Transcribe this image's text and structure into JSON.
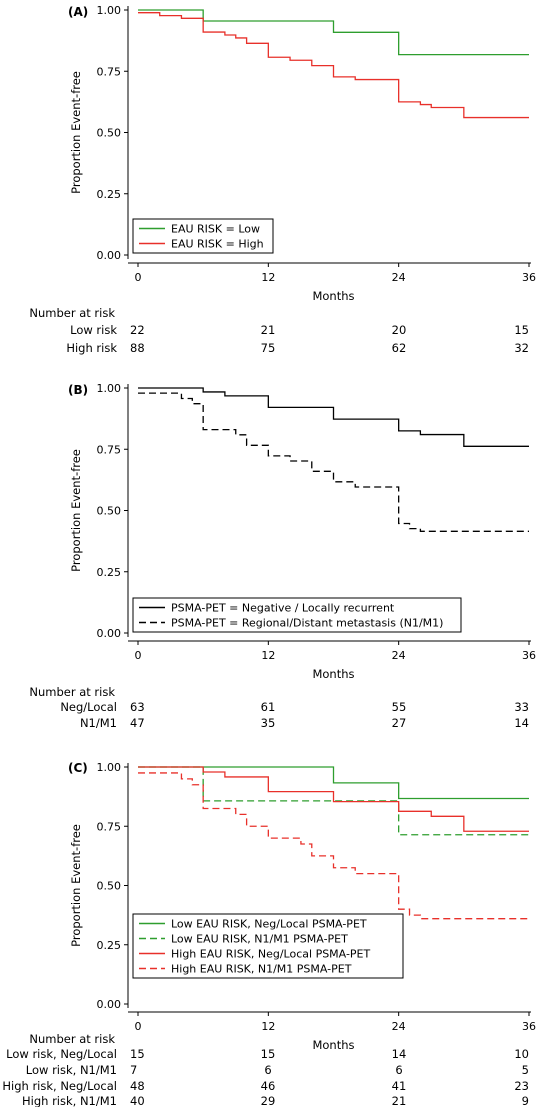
{
  "figure": {
    "x_axis_label": "Months",
    "y_axis_label": "Proportion Event-free",
    "number_at_risk_title": "Number at risk"
  },
  "chart_data": [
    {
      "panel_label": "(A)",
      "type": "line",
      "xlabel": "Months",
      "ylabel": "Proportion Event-free",
      "x_ticks": [
        0,
        12,
        24,
        36
      ],
      "y_ticks": [
        "0.00",
        "0.25",
        "0.50",
        "0.75",
        "1.00"
      ],
      "xlim": [
        0,
        36
      ],
      "ylim": [
        0,
        1
      ],
      "legend_position": "bottom-left",
      "series": [
        {
          "name": "EAU RISK = Low",
          "color": "#2e9e2e",
          "dash": "solid",
          "steps": [
            [
              0,
              1.0
            ],
            [
              6,
              0.955
            ],
            [
              18,
              0.909
            ],
            [
              24,
              0.818
            ],
            [
              36,
              0.818
            ]
          ]
        },
        {
          "name": "EAU RISK = High",
          "color": "#e8302a",
          "dash": "solid",
          "steps": [
            [
              0,
              0.989
            ],
            [
              2,
              0.977
            ],
            [
              4,
              0.966
            ],
            [
              6,
              0.91
            ],
            [
              8,
              0.898
            ],
            [
              9,
              0.886
            ],
            [
              10,
              0.864
            ],
            [
              12,
              0.807
            ],
            [
              14,
              0.795
            ],
            [
              16,
              0.773
            ],
            [
              18,
              0.727
            ],
            [
              20,
              0.716
            ],
            [
              24,
              0.625
            ],
            [
              26,
              0.614
            ],
            [
              27,
              0.602
            ],
            [
              30,
              0.561
            ],
            [
              36,
              0.561
            ]
          ]
        }
      ],
      "risk_table": [
        {
          "label": "Low risk",
          "values": [
            22,
            21,
            20,
            15
          ]
        },
        {
          "label": "High risk",
          "values": [
            88,
            75,
            62,
            32
          ]
        }
      ]
    },
    {
      "panel_label": "(B)",
      "type": "line",
      "xlabel": "Months",
      "ylabel": "Proportion Event-free",
      "x_ticks": [
        0,
        12,
        24,
        36
      ],
      "y_ticks": [
        "0.00",
        "0.25",
        "0.50",
        "0.75",
        "1.00"
      ],
      "xlim": [
        0,
        36
      ],
      "ylim": [
        0,
        1
      ],
      "legend_position": "bottom-left",
      "series": [
        {
          "name": "PSMA-PET = Negative / Locally recurrent",
          "color": "#000000",
          "dash": "solid",
          "steps": [
            [
              0,
              1.0
            ],
            [
              6,
              0.984
            ],
            [
              8,
              0.968
            ],
            [
              12,
              0.921
            ],
            [
              18,
              0.873
            ],
            [
              24,
              0.825
            ],
            [
              26,
              0.81
            ],
            [
              30,
              0.762
            ],
            [
              36,
              0.762
            ]
          ]
        },
        {
          "name": "PSMA-PET = Regional/Distant metastasis (N1/M1)",
          "color": "#000000",
          "dash": "dashed",
          "steps": [
            [
              0,
              0.979
            ],
            [
              4,
              0.957
            ],
            [
              5,
              0.936
            ],
            [
              6,
              0.83
            ],
            [
              9,
              0.809
            ],
            [
              10,
              0.766
            ],
            [
              12,
              0.723
            ],
            [
              14,
              0.702
            ],
            [
              16,
              0.66
            ],
            [
              18,
              0.617
            ],
            [
              20,
              0.596
            ],
            [
              24,
              0.447
            ],
            [
              25,
              0.426
            ],
            [
              26,
              0.415
            ],
            [
              36,
              0.415
            ]
          ]
        }
      ],
      "risk_table": [
        {
          "label": "Neg/Local",
          "values": [
            63,
            61,
            55,
            33
          ]
        },
        {
          "label": "N1/M1",
          "values": [
            47,
            35,
            27,
            14
          ]
        }
      ]
    },
    {
      "panel_label": "(C)",
      "type": "line",
      "xlabel": "Months",
      "ylabel": "Proportion Event-free",
      "x_ticks": [
        0,
        12,
        24,
        36
      ],
      "y_ticks": [
        "0.00",
        "0.25",
        "0.50",
        "0.75",
        "1.00"
      ],
      "xlim": [
        0,
        36
      ],
      "ylim": [
        0,
        1
      ],
      "legend_position": "bottom-left",
      "series": [
        {
          "name": "Low EAU RISK, Neg/Local PSMA-PET",
          "color": "#2e9e2e",
          "dash": "solid",
          "steps": [
            [
              0,
              1.0
            ],
            [
              18,
              0.933
            ],
            [
              24,
              0.867
            ],
            [
              36,
              0.867
            ]
          ]
        },
        {
          "name": "Low EAU RISK, N1/M1 PSMA-PET",
          "color": "#2e9e2e",
          "dash": "dashed",
          "steps": [
            [
              0,
              1.0
            ],
            [
              6,
              0.857
            ],
            [
              24,
              0.714
            ],
            [
              36,
              0.714
            ]
          ]
        },
        {
          "name": "High EAU RISK, Neg/Local PSMA-PET",
          "color": "#e8302a",
          "dash": "solid",
          "steps": [
            [
              0,
              1.0
            ],
            [
              6,
              0.979
            ],
            [
              8,
              0.958
            ],
            [
              12,
              0.896
            ],
            [
              18,
              0.854
            ],
            [
              24,
              0.813
            ],
            [
              27,
              0.792
            ],
            [
              30,
              0.729
            ],
            [
              36,
              0.729
            ]
          ]
        },
        {
          "name": "High EAU RISK, N1/M1 PSMA-PET",
          "color": "#e8302a",
          "dash": "dashed",
          "steps": [
            [
              0,
              0.975
            ],
            [
              4,
              0.95
            ],
            [
              5,
              0.925
            ],
            [
              6,
              0.825
            ],
            [
              9,
              0.8
            ],
            [
              10,
              0.75
            ],
            [
              12,
              0.7
            ],
            [
              15,
              0.675
            ],
            [
              16,
              0.625
            ],
            [
              18,
              0.575
            ],
            [
              20,
              0.55
            ],
            [
              24,
              0.4
            ],
            [
              25,
              0.375
            ],
            [
              26,
              0.36
            ],
            [
              36,
              0.36
            ]
          ]
        }
      ],
      "risk_table": [
        {
          "label": "Low risk, Neg/Local",
          "values": [
            15,
            15,
            14,
            10
          ]
        },
        {
          "label": "Low risk, N1/M1",
          "values": [
            7,
            6,
            6,
            5
          ]
        },
        {
          "label": "High risk, Neg/Local",
          "values": [
            48,
            46,
            41,
            23
          ]
        },
        {
          "label": "High risk, N1/M1",
          "values": [
            40,
            29,
            21,
            9
          ]
        }
      ]
    }
  ]
}
